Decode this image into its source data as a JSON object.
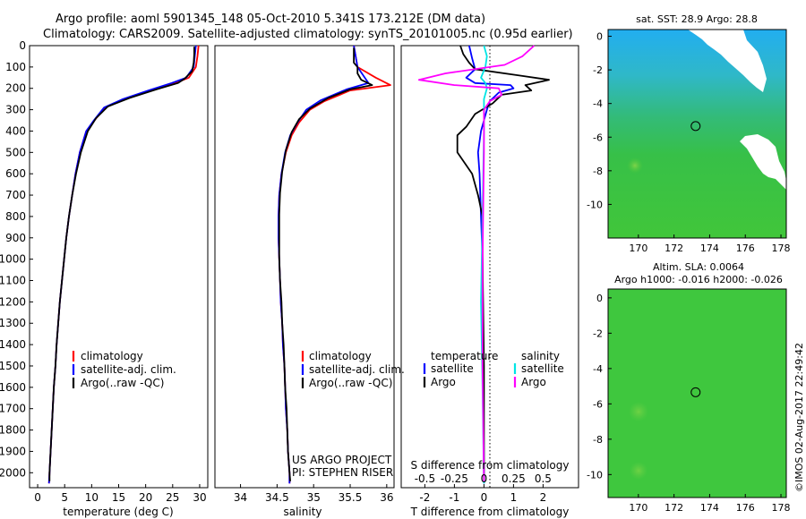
{
  "header": {
    "line1": "Argo profile: aoml 5901345_148 05-Oct-2010 5.341S 173.212E (DM data)",
    "line2": "Climatology: CARS2009. Satellite-adjusted climatology: synTS_20101005.nc (0.95d earlier)"
  },
  "colors": {
    "climatology": "#ff0000",
    "satellite": "#0000ff",
    "argo": "#000000",
    "sat_salinity": "#00e5e5",
    "argo_salinity": "#ff00ff"
  },
  "depth_axis": {
    "ylim": [
      0,
      2070
    ],
    "ticks": [
      0,
      100,
      200,
      300,
      400,
      500,
      600,
      700,
      800,
      900,
      1000,
      1100,
      1200,
      1300,
      1400,
      1500,
      1600,
      1700,
      1800,
      1900,
      2000
    ]
  },
  "chart_data": [
    {
      "id": "temperature",
      "type": "line",
      "xlabel": "temperature (deg C)",
      "xlim": [
        -1.5,
        31.5
      ],
      "xticks": [
        0,
        5,
        10,
        15,
        20,
        25,
        30
      ],
      "legend": [
        "climatology",
        "satellite-adj. clim.",
        "Argo(..raw -QC)"
      ],
      "series": [
        {
          "name": "climatology",
          "color": "#ff0000",
          "points": [
            [
              29.8,
              0
            ],
            [
              29.6,
              50
            ],
            [
              29.3,
              100
            ],
            [
              28.0,
              150
            ],
            [
              25.5,
              175
            ],
            [
              21.0,
              210
            ],
            [
              16.0,
              250
            ],
            [
              12.5,
              290
            ],
            [
              10.5,
              350
            ],
            [
              9.0,
              400
            ],
            [
              7.8,
              500
            ],
            [
              7.0,
              600
            ],
            [
              6.4,
              700
            ],
            [
              5.8,
              800
            ],
            [
              5.3,
              900
            ],
            [
              4.9,
              1000
            ],
            [
              4.5,
              1100
            ],
            [
              4.1,
              1200
            ],
            [
              3.8,
              1300
            ],
            [
              3.5,
              1400
            ],
            [
              3.3,
              1500
            ],
            [
              3.0,
              1600
            ],
            [
              2.8,
              1700
            ],
            [
              2.6,
              1800
            ],
            [
              2.4,
              1900
            ],
            [
              2.2,
              2000
            ],
            [
              2.1,
              2050
            ]
          ]
        },
        {
          "name": "satellite-adj. clim.",
          "color": "#0000ff",
          "points": [
            [
              29.3,
              0
            ],
            [
              29.1,
              50
            ],
            [
              28.9,
              100
            ],
            [
              27.5,
              150
            ],
            [
              24.8,
              175
            ],
            [
              20.5,
              210
            ],
            [
              15.8,
              250
            ],
            [
              12.3,
              290
            ],
            [
              10.4,
              350
            ],
            [
              9.0,
              400
            ],
            [
              7.8,
              500
            ],
            [
              7.0,
              600
            ],
            [
              6.4,
              700
            ],
            [
              5.8,
              800
            ],
            [
              5.3,
              900
            ],
            [
              4.9,
              1000
            ],
            [
              4.5,
              1100
            ],
            [
              4.1,
              1200
            ],
            [
              3.8,
              1300
            ],
            [
              3.5,
              1400
            ],
            [
              3.3,
              1500
            ],
            [
              3.0,
              1600
            ],
            [
              2.8,
              1700
            ],
            [
              2.6,
              1800
            ],
            [
              2.4,
              1900
            ],
            [
              2.2,
              2000
            ],
            [
              2.1,
              2050
            ]
          ]
        },
        {
          "name": "Argo(..raw -QC)",
          "color": "#000000",
          "points": [
            [
              29.0,
              5
            ],
            [
              29.0,
              40
            ],
            [
              28.9,
              80
            ],
            [
              28.6,
              120
            ],
            [
              27.2,
              155
            ],
            [
              26.0,
              175
            ],
            [
              22.0,
              205
            ],
            [
              17.0,
              245
            ],
            [
              13.0,
              285
            ],
            [
              10.8,
              340
            ],
            [
              9.3,
              400
            ],
            [
              8.0,
              500
            ],
            [
              7.1,
              600
            ],
            [
              6.4,
              700
            ],
            [
              5.8,
              800
            ],
            [
              5.3,
              900
            ],
            [
              4.9,
              1000
            ],
            [
              4.5,
              1100
            ],
            [
              4.1,
              1200
            ],
            [
              3.8,
              1300
            ],
            [
              3.5,
              1400
            ],
            [
              3.3,
              1500
            ],
            [
              3.0,
              1600
            ],
            [
              2.8,
              1700
            ],
            [
              2.6,
              1800
            ],
            [
              2.4,
              1900
            ],
            [
              2.2,
              2000
            ],
            [
              2.2,
              2040
            ]
          ]
        }
      ]
    },
    {
      "id": "salinity",
      "type": "line",
      "xlabel": "salinity",
      "xlim": [
        33.65,
        36.1
      ],
      "xticks": [
        34,
        34.5,
        35,
        35.5,
        36
      ],
      "legend": [
        "climatology",
        "satellite-adj. clim.",
        "Argo(..raw -QC)"
      ],
      "annotations": [
        "US ARGO PROJECT",
        "PI: STEPHEN RISER"
      ],
      "series": [
        {
          "name": "climatology",
          "color": "#ff0000",
          "points": [
            [
              35.55,
              0
            ],
            [
              35.6,
              100
            ],
            [
              35.85,
              150
            ],
            [
              36.05,
              185
            ],
            [
              35.5,
              210
            ],
            [
              35.15,
              260
            ],
            [
              34.95,
              300
            ],
            [
              34.8,
              360
            ],
            [
              34.7,
              420
            ],
            [
              34.62,
              500
            ],
            [
              34.56,
              600
            ],
            [
              34.53,
              700
            ],
            [
              34.52,
              800
            ],
            [
              34.52,
              900
            ],
            [
              34.53,
              1000
            ],
            [
              34.54,
              1100
            ],
            [
              34.55,
              1200
            ],
            [
              34.57,
              1300
            ],
            [
              34.58,
              1400
            ],
            [
              34.6,
              1500
            ],
            [
              34.61,
              1600
            ],
            [
              34.62,
              1700
            ],
            [
              34.64,
              1800
            ],
            [
              34.65,
              1900
            ],
            [
              34.67,
              2000
            ],
            [
              34.67,
              2050
            ]
          ]
        },
        {
          "name": "satellite-adj. clim.",
          "color": "#0000ff",
          "points": [
            [
              35.55,
              0
            ],
            [
              35.6,
              100
            ],
            [
              35.7,
              150
            ],
            [
              35.75,
              175
            ],
            [
              35.45,
              205
            ],
            [
              35.1,
              255
            ],
            [
              34.9,
              300
            ],
            [
              34.78,
              360
            ],
            [
              34.68,
              420
            ],
            [
              34.61,
              500
            ],
            [
              34.56,
              600
            ],
            [
              34.53,
              700
            ],
            [
              34.52,
              800
            ],
            [
              34.52,
              900
            ],
            [
              34.53,
              1000
            ],
            [
              34.54,
              1100
            ],
            [
              34.55,
              1200
            ],
            [
              34.57,
              1300
            ],
            [
              34.58,
              1400
            ],
            [
              34.6,
              1500
            ],
            [
              34.61,
              1600
            ],
            [
              34.62,
              1700
            ],
            [
              34.64,
              1800
            ],
            [
              34.65,
              1900
            ],
            [
              34.67,
              2000
            ],
            [
              34.67,
              2050
            ]
          ]
        },
        {
          "name": "Argo(..raw -QC)",
          "color": "#000000",
          "points": [
            [
              35.55,
              10
            ],
            [
              35.55,
              80
            ],
            [
              35.6,
              100
            ],
            [
              35.6,
              130
            ],
            [
              35.65,
              160
            ],
            [
              35.8,
              185
            ],
            [
              35.5,
              205
            ],
            [
              35.2,
              245
            ],
            [
              34.95,
              295
            ],
            [
              34.8,
              345
            ],
            [
              34.7,
              405
            ],
            [
              34.62,
              490
            ],
            [
              34.57,
              590
            ],
            [
              34.54,
              690
            ],
            [
              34.53,
              790
            ],
            [
              34.53,
              890
            ],
            [
              34.53,
              990
            ],
            [
              34.54,
              1100
            ],
            [
              34.56,
              1200
            ],
            [
              34.57,
              1300
            ],
            [
              34.59,
              1400
            ],
            [
              34.6,
              1500
            ],
            [
              34.61,
              1600
            ],
            [
              34.63,
              1700
            ],
            [
              34.64,
              1800
            ],
            [
              34.65,
              1900
            ],
            [
              34.67,
              2000
            ],
            [
              34.68,
              2040
            ]
          ]
        }
      ]
    },
    {
      "id": "differences",
      "type": "line",
      "xlabel": "T difference from climatology",
      "xlim": [
        -2.8,
        3.2
      ],
      "xticks": [
        -2,
        -1,
        0,
        1,
        2
      ],
      "top_axis_label": "S difference from climatology",
      "top_ticks": [
        -0.5,
        -0.25,
        0,
        0.25,
        0.5
      ],
      "legend_left_title": "temperature",
      "legend_left": [
        "satellite",
        "Argo"
      ],
      "legend_right_title": "salinity",
      "legend_right": [
        "satellite",
        "Argo"
      ],
      "series": [
        {
          "name": "T satellite",
          "color": "#0000ff",
          "points": [
            [
              -0.5,
              0
            ],
            [
              -0.4,
              60
            ],
            [
              -0.3,
              110
            ],
            [
              -0.6,
              150
            ],
            [
              -0.3,
              175
            ],
            [
              0.9,
              185
            ],
            [
              1.0,
              200
            ],
            [
              0.5,
              220
            ],
            [
              0.2,
              260
            ],
            [
              0.1,
              300
            ],
            [
              -0.1,
              400
            ],
            [
              -0.2,
              500
            ],
            [
              -0.15,
              600
            ],
            [
              -0.1,
              800
            ],
            [
              -0.05,
              1000
            ],
            [
              -0.02,
              1500
            ],
            [
              0,
              2050
            ]
          ]
        },
        {
          "name": "T Argo",
          "color": "#000000",
          "points": [
            [
              -0.8,
              0
            ],
            [
              -0.7,
              40
            ],
            [
              -0.5,
              80
            ],
            [
              -0.3,
              110
            ],
            [
              1.2,
              140
            ],
            [
              2.2,
              160
            ],
            [
              1.4,
              185
            ],
            [
              1.6,
              210
            ],
            [
              0.6,
              230
            ],
            [
              0.3,
              270
            ],
            [
              -0.3,
              320
            ],
            [
              -0.6,
              380
            ],
            [
              -0.9,
              420
            ],
            [
              -0.9,
              500
            ],
            [
              -0.6,
              560
            ],
            [
              -0.4,
              600
            ],
            [
              -0.2,
              700
            ],
            [
              -0.05,
              800
            ],
            [
              -0.05,
              1000
            ],
            [
              0,
              1500
            ],
            [
              0,
              2040
            ]
          ]
        },
        {
          "name": "S satellite",
          "color": "#00e5e5",
          "points": [
            [
              0,
              0
            ],
            [
              0.1,
              50
            ],
            [
              0.05,
              100
            ],
            [
              -0.1,
              150
            ],
            [
              0.05,
              175
            ],
            [
              0.1,
              200
            ],
            [
              0,
              250
            ],
            [
              0,
              400
            ],
            [
              -0.05,
              800
            ],
            [
              -0.1,
              1200
            ],
            [
              -0.05,
              1600
            ],
            [
              0,
              2050
            ]
          ]
        },
        {
          "name": "S Argo",
          "color": "#ff00ff",
          "points": [
            [
              1.7,
              0
            ],
            [
              1.3,
              50
            ],
            [
              0.7,
              90
            ],
            [
              -1.3,
              130
            ],
            [
              -2.2,
              160
            ],
            [
              -1.0,
              185
            ],
            [
              0.5,
              200
            ],
            [
              0.6,
              230
            ],
            [
              0.2,
              260
            ],
            [
              0,
              300
            ],
            [
              0,
              500
            ],
            [
              -0.05,
              1000
            ],
            [
              -0.05,
              1500
            ],
            [
              0,
              2040
            ]
          ]
        }
      ]
    },
    {
      "id": "sst_map",
      "type": "heatmap",
      "title": "sat. SST: 28.9  Argo: 28.8",
      "xlim": [
        168.3,
        178.3
      ],
      "ylim": [
        -12,
        0.4
      ],
      "xticks": [
        170,
        172,
        174,
        176,
        178
      ],
      "yticks": [
        0,
        -2,
        -4,
        -6,
        -8,
        -10
      ],
      "marker": {
        "lon": 173.212,
        "lat": -5.341
      }
    },
    {
      "id": "sla_map",
      "type": "heatmap",
      "title": "Altim. SLA: 0.0064",
      "subtitle": "Argo h1000: -0.016 h2000: -0.026",
      "xlim": [
        168.3,
        178.3
      ],
      "ylim": [
        -11.3,
        0.5
      ],
      "xticks": [
        170,
        172,
        174,
        176,
        178
      ],
      "yticks": [
        0,
        -2,
        -4,
        -6,
        -8,
        -10
      ],
      "marker": {
        "lon": 173.212,
        "lat": -5.341
      }
    }
  ],
  "watermark": "©IMOS 02-Aug-2017 22:49:42"
}
